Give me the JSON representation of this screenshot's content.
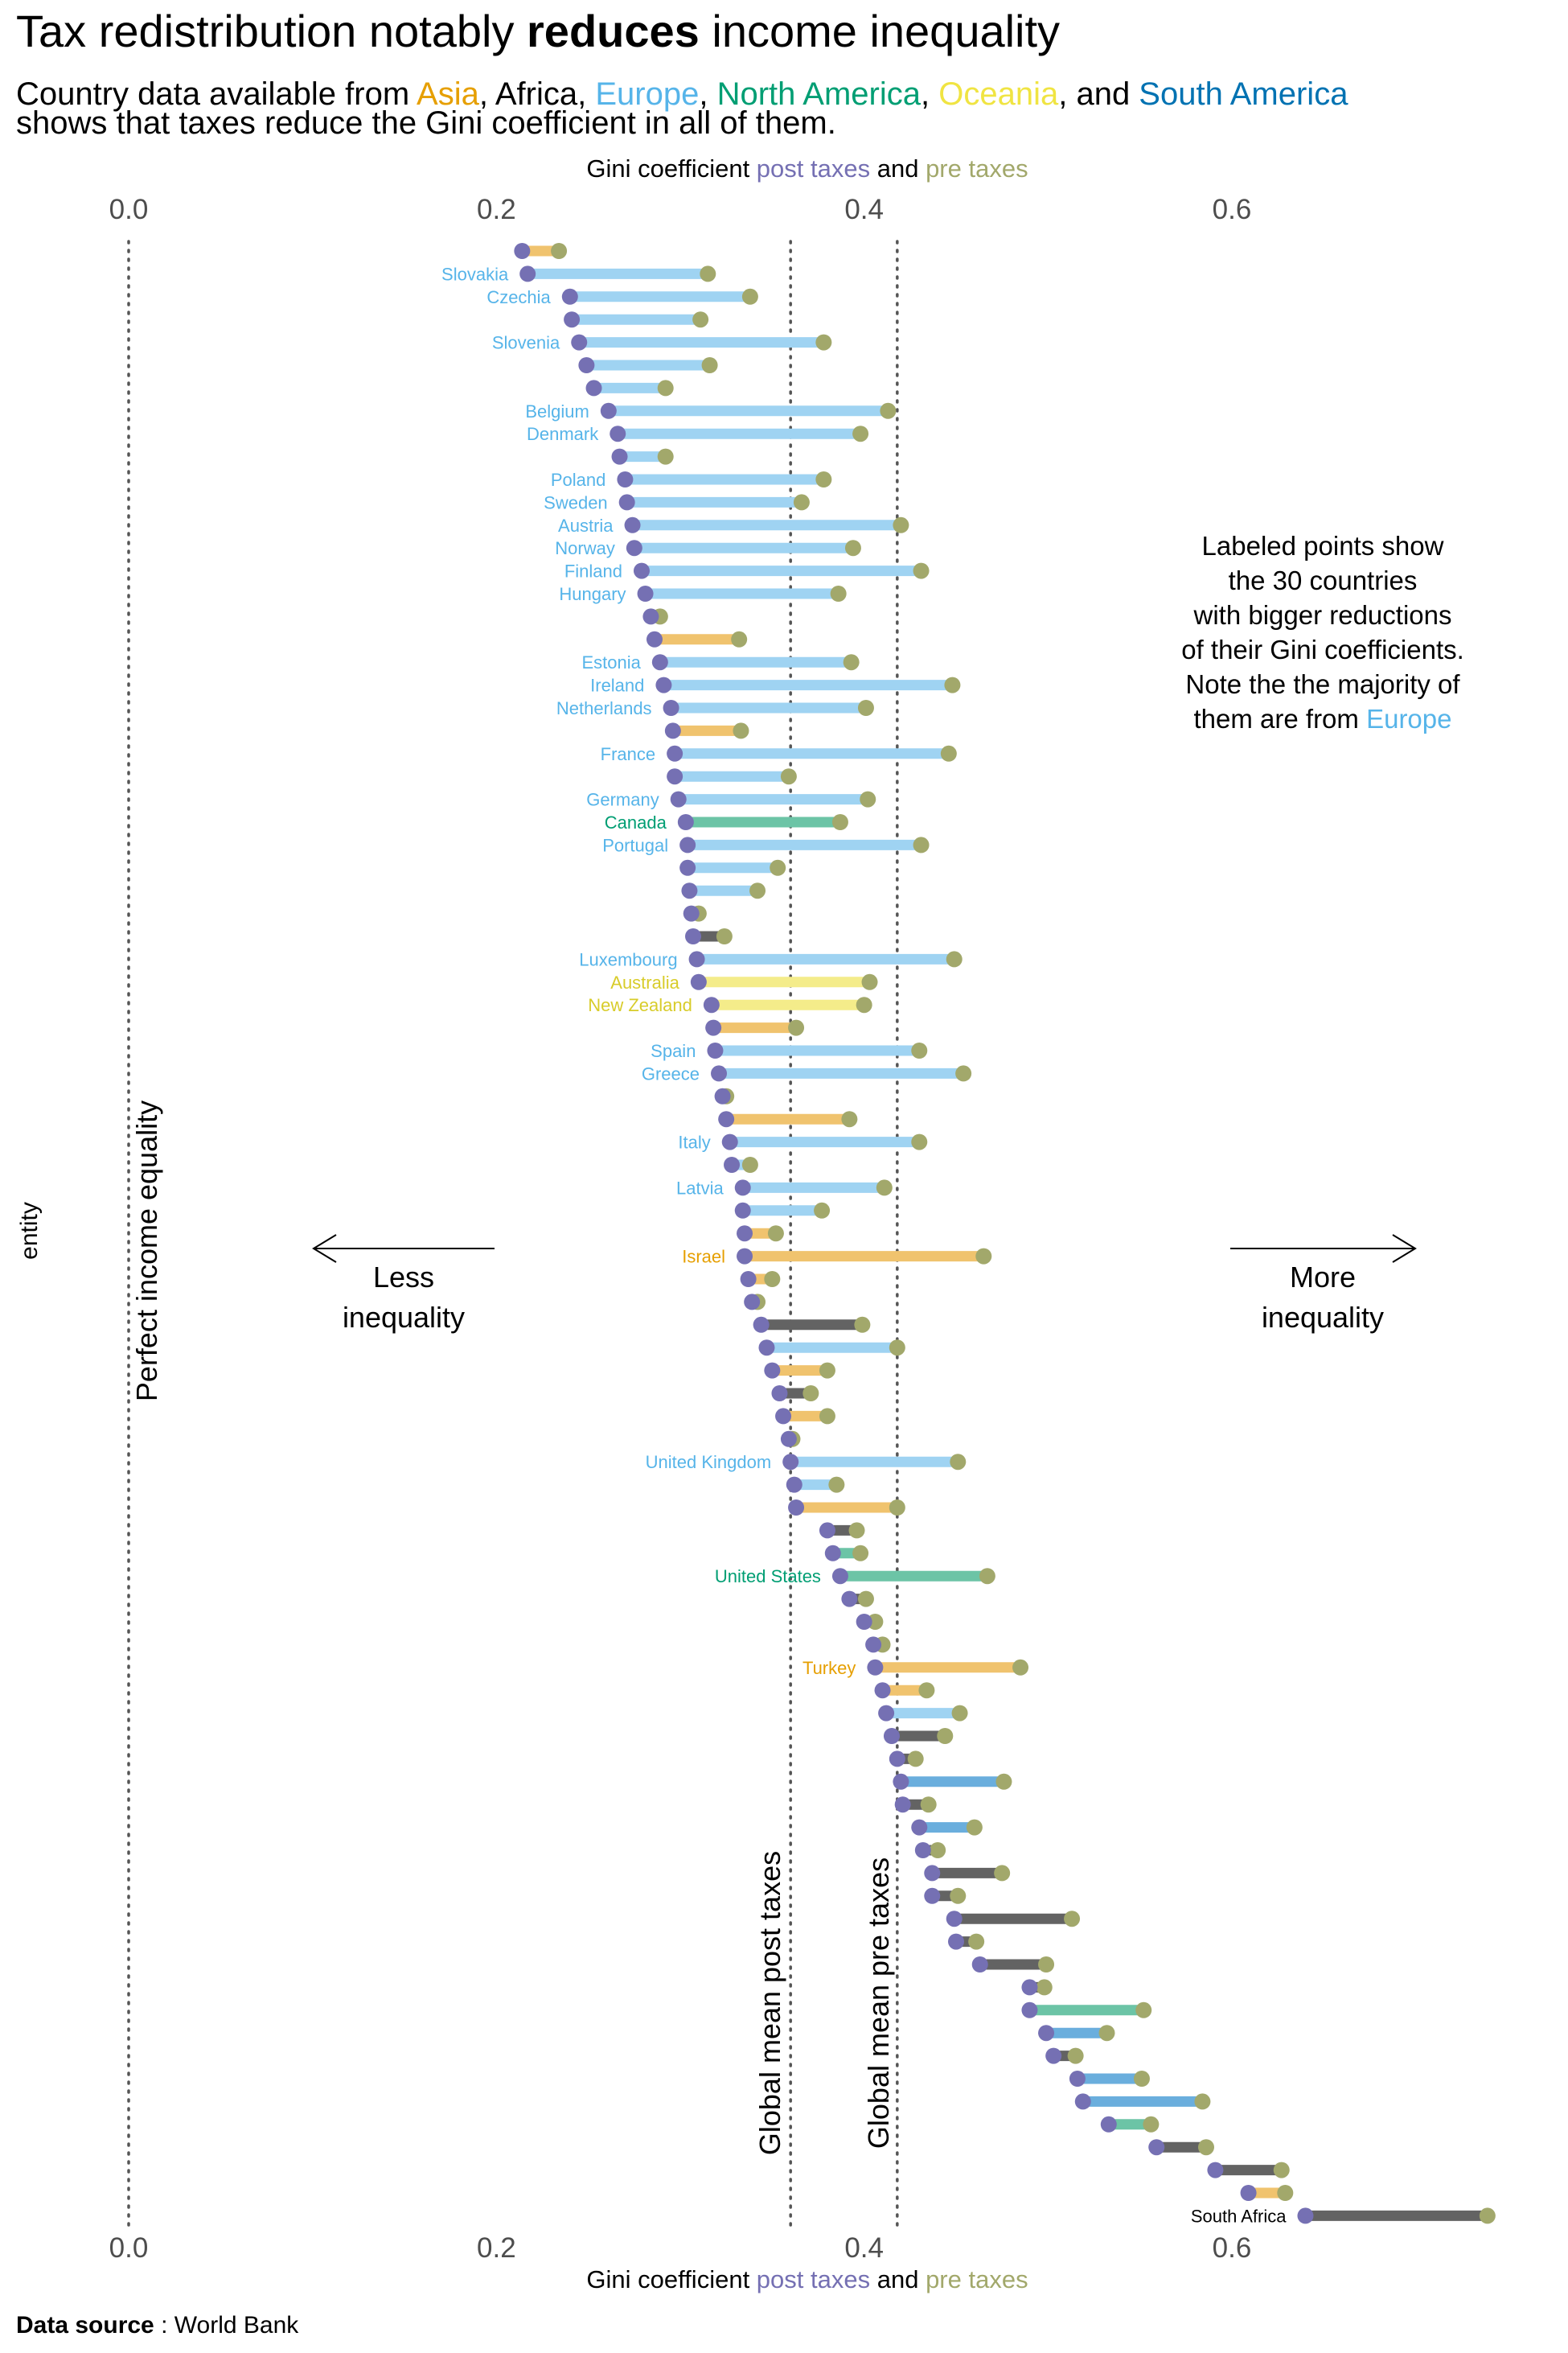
{
  "title_plain": "Tax redistribution notably ",
  "title_bold": "reduces",
  "title_rest": " income inequality",
  "subtitle": {
    "line1_parts": [
      {
        "t": "Country data available from ",
        "c": "#000000"
      },
      {
        "t": "Asia",
        "c": "#E69F00"
      },
      {
        "t": ", Africa, ",
        "c": "#000000"
      },
      {
        "t": "Europe",
        "c": "#56B4E9"
      },
      {
        "t": ", ",
        "c": "#000000"
      },
      {
        "t": "North America",
        "c": "#009E73"
      },
      {
        "t": ", ",
        "c": "#000000"
      },
      {
        "t": "Oceania",
        "c": "#F0E442"
      },
      {
        "t": ", and ",
        "c": "#000000"
      },
      {
        "t": "South America",
        "c": "#0072B2"
      }
    ],
    "line2": "shows that taxes reduce the Gini coefficient in all of them."
  },
  "axis_title_parts": [
    {
      "t": "Gini coefficient ",
      "c": "#000000"
    },
    {
      "t": "post taxes",
      "c": "#7570B3"
    },
    {
      "t": " and ",
      "c": "#000000"
    },
    {
      "t": "pre taxes",
      "c": "#A2A86B"
    }
  ],
  "y_axis_label": "entity",
  "reference_labels": {
    "perfect": "Perfect income equality",
    "mean_post": "Global mean post taxes",
    "mean_pre": "Global mean pre taxes"
  },
  "arrows": {
    "less": [
      "Less",
      "inequality"
    ],
    "more": [
      "More",
      "inequality"
    ]
  },
  "annotation": {
    "lines": [
      "Labeled points show",
      "the 30 countries",
      "with bigger reductions",
      "of their Gini coefficients.",
      "Note the the majority of"
    ],
    "last_line_prefix": "them are from ",
    "last_line_highlight": "Europe",
    "highlight_color": "#56B4E9"
  },
  "source_bold": "Data source",
  "source_rest": " : World Bank",
  "colors": {
    "post": "#7570B3",
    "pre": "#A2A86B",
    "Asia": "#F0C36E",
    "Europe": "#9FD3F2",
    "North America": "#6CC4A6",
    "Oceania": "#F4EC8A",
    "South America": "#6AAEDD",
    "Africa": "#636363"
  },
  "label_colors": {
    "Asia": "#E69F00",
    "Europe": "#56B4E9",
    "North America": "#009E73",
    "Oceania": "#D8CC2A",
    "South America": "#0072B2",
    "Africa": "#000000"
  },
  "chart_data": {
    "type": "dumbbell",
    "x_axis": "Gini coefficient",
    "xlim": [
      0.0,
      0.6
    ],
    "ticks": [
      0.0,
      0.2,
      0.4,
      0.6
    ],
    "tick_labels": [
      "0.0",
      "0.2",
      "0.4",
      "0.6"
    ],
    "global_mean_post": 0.36,
    "global_mean_pre": 0.418,
    "rows": [
      {
        "label": "",
        "region": "Asia",
        "post": 0.214,
        "pre": 0.234
      },
      {
        "label": "Slovakia",
        "region": "Europe",
        "post": 0.217,
        "pre": 0.315
      },
      {
        "label": "Czechia",
        "region": "Europe",
        "post": 0.24,
        "pre": 0.338
      },
      {
        "label": "",
        "region": "Europe",
        "post": 0.241,
        "pre": 0.311
      },
      {
        "label": "Slovenia",
        "region": "Europe",
        "post": 0.245,
        "pre": 0.378
      },
      {
        "label": "",
        "region": "Europe",
        "post": 0.249,
        "pre": 0.316
      },
      {
        "label": "",
        "region": "Europe",
        "post": 0.253,
        "pre": 0.292
      },
      {
        "label": "Belgium",
        "region": "Europe",
        "post": 0.261,
        "pre": 0.413
      },
      {
        "label": "Denmark",
        "region": "Europe",
        "post": 0.266,
        "pre": 0.398
      },
      {
        "label": "",
        "region": "Europe",
        "post": 0.267,
        "pre": 0.292
      },
      {
        "label": "Poland",
        "region": "Europe",
        "post": 0.27,
        "pre": 0.378
      },
      {
        "label": "Sweden",
        "region": "Europe",
        "post": 0.271,
        "pre": 0.366
      },
      {
        "label": "Austria",
        "region": "Europe",
        "post": 0.274,
        "pre": 0.42
      },
      {
        "label": "Norway",
        "region": "Europe",
        "post": 0.275,
        "pre": 0.394
      },
      {
        "label": "Finland",
        "region": "Europe",
        "post": 0.279,
        "pre": 0.431
      },
      {
        "label": "Hungary",
        "region": "Europe",
        "post": 0.281,
        "pre": 0.386
      },
      {
        "label": "",
        "region": "Europe",
        "post": 0.284,
        "pre": 0.289
      },
      {
        "label": "",
        "region": "Asia",
        "post": 0.286,
        "pre": 0.332
      },
      {
        "label": "Estonia",
        "region": "Europe",
        "post": 0.289,
        "pre": 0.393
      },
      {
        "label": "Ireland",
        "region": "Europe",
        "post": 0.291,
        "pre": 0.448
      },
      {
        "label": "Netherlands",
        "region": "Europe",
        "post": 0.295,
        "pre": 0.401
      },
      {
        "label": "",
        "region": "Asia",
        "post": 0.296,
        "pre": 0.333
      },
      {
        "label": "France",
        "region": "Europe",
        "post": 0.297,
        "pre": 0.446
      },
      {
        "label": "",
        "region": "Europe",
        "post": 0.297,
        "pre": 0.359
      },
      {
        "label": "Germany",
        "region": "Europe",
        "post": 0.299,
        "pre": 0.402
      },
      {
        "label": "Canada",
        "region": "North America",
        "post": 0.303,
        "pre": 0.387
      },
      {
        "label": "Portugal",
        "region": "Europe",
        "post": 0.304,
        "pre": 0.431
      },
      {
        "label": "",
        "region": "Europe",
        "post": 0.304,
        "pre": 0.353
      },
      {
        "label": "",
        "region": "Europe",
        "post": 0.305,
        "pre": 0.342
      },
      {
        "label": "",
        "region": "Europe",
        "post": 0.306,
        "pre": 0.31
      },
      {
        "label": "",
        "region": "Africa",
        "post": 0.307,
        "pre": 0.324
      },
      {
        "label": "Luxembourg",
        "region": "Europe",
        "post": 0.309,
        "pre": 0.449
      },
      {
        "label": "Australia",
        "region": "Oceania",
        "post": 0.31,
        "pre": 0.403
      },
      {
        "label": "New Zealand",
        "region": "Oceania",
        "post": 0.317,
        "pre": 0.4
      },
      {
        "label": "",
        "region": "Asia",
        "post": 0.318,
        "pre": 0.363
      },
      {
        "label": "Spain",
        "region": "Europe",
        "post": 0.319,
        "pre": 0.43
      },
      {
        "label": "Greece",
        "region": "Europe",
        "post": 0.321,
        "pre": 0.454
      },
      {
        "label": "",
        "region": "Europe",
        "post": 0.323,
        "pre": 0.325
      },
      {
        "label": "",
        "region": "Asia",
        "post": 0.325,
        "pre": 0.392
      },
      {
        "label": "Italy",
        "region": "Europe",
        "post": 0.327,
        "pre": 0.43
      },
      {
        "label": "",
        "region": "Europe",
        "post": 0.328,
        "pre": 0.338
      },
      {
        "label": "Latvia",
        "region": "Europe",
        "post": 0.334,
        "pre": 0.411
      },
      {
        "label": "",
        "region": "Europe",
        "post": 0.334,
        "pre": 0.377
      },
      {
        "label": "",
        "region": "Asia",
        "post": 0.335,
        "pre": 0.352
      },
      {
        "label": "Israel",
        "region": "Asia",
        "post": 0.335,
        "pre": 0.465
      },
      {
        "label": "",
        "region": "Asia",
        "post": 0.337,
        "pre": 0.35
      },
      {
        "label": "",
        "region": "Africa",
        "post": 0.339,
        "pre": 0.342
      },
      {
        "label": "",
        "region": "Africa",
        "post": 0.344,
        "pre": 0.399
      },
      {
        "label": "",
        "region": "Europe",
        "post": 0.347,
        "pre": 0.418
      },
      {
        "label": "",
        "region": "Asia",
        "post": 0.35,
        "pre": 0.38
      },
      {
        "label": "",
        "region": "Africa",
        "post": 0.354,
        "pre": 0.371
      },
      {
        "label": "",
        "region": "Asia",
        "post": 0.356,
        "pre": 0.38
      },
      {
        "label": "",
        "region": "Africa",
        "post": 0.359,
        "pre": 0.361
      },
      {
        "label": "United Kingdom",
        "region": "Europe",
        "post": 0.36,
        "pre": 0.451
      },
      {
        "label": "",
        "region": "Europe",
        "post": 0.362,
        "pre": 0.385
      },
      {
        "label": "",
        "region": "Asia",
        "post": 0.363,
        "pre": 0.418
      },
      {
        "label": "",
        "region": "Africa",
        "post": 0.38,
        "pre": 0.396
      },
      {
        "label": "",
        "region": "North America",
        "post": 0.383,
        "pre": 0.398
      },
      {
        "label": "United States",
        "region": "North America",
        "post": 0.387,
        "pre": 0.467
      },
      {
        "label": "",
        "region": "Africa",
        "post": 0.392,
        "pre": 0.401
      },
      {
        "label": "",
        "region": "Africa",
        "post": 0.4,
        "pre": 0.406
      },
      {
        "label": "",
        "region": "Africa",
        "post": 0.405,
        "pre": 0.41
      },
      {
        "label": "Turkey",
        "region": "Asia",
        "post": 0.406,
        "pre": 0.485
      },
      {
        "label": "",
        "region": "Asia",
        "post": 0.41,
        "pre": 0.434
      },
      {
        "label": "",
        "region": "Europe",
        "post": 0.412,
        "pre": 0.452
      },
      {
        "label": "",
        "region": "Africa",
        "post": 0.415,
        "pre": 0.444
      },
      {
        "label": "",
        "region": "Africa",
        "post": 0.418,
        "pre": 0.428
      },
      {
        "label": "",
        "region": "South America",
        "post": 0.42,
        "pre": 0.476
      },
      {
        "label": "",
        "region": "Africa",
        "post": 0.421,
        "pre": 0.435
      },
      {
        "label": "",
        "region": "South America",
        "post": 0.43,
        "pre": 0.46
      },
      {
        "label": "",
        "region": "Africa",
        "post": 0.432,
        "pre": 0.44
      },
      {
        "label": "",
        "region": "Africa",
        "post": 0.437,
        "pre": 0.475
      },
      {
        "label": "",
        "region": "Africa",
        "post": 0.437,
        "pre": 0.451
      },
      {
        "label": "",
        "region": "Africa",
        "post": 0.449,
        "pre": 0.513
      },
      {
        "label": "",
        "region": "Africa",
        "post": 0.45,
        "pre": 0.461
      },
      {
        "label": "",
        "region": "Africa",
        "post": 0.463,
        "pre": 0.499
      },
      {
        "label": "",
        "region": "Africa",
        "post": 0.49,
        "pre": 0.498
      },
      {
        "label": "",
        "region": "North America",
        "post": 0.49,
        "pre": 0.552
      },
      {
        "label": "",
        "region": "South America",
        "post": 0.499,
        "pre": 0.532
      },
      {
        "label": "",
        "region": "Africa",
        "post": 0.503,
        "pre": 0.515
      },
      {
        "label": "",
        "region": "South America",
        "post": 0.516,
        "pre": 0.551
      },
      {
        "label": "",
        "region": "South America",
        "post": 0.519,
        "pre": 0.584
      },
      {
        "label": "",
        "region": "North America",
        "post": 0.533,
        "pre": 0.556
      },
      {
        "label": "",
        "region": "Africa",
        "post": 0.559,
        "pre": 0.586
      },
      {
        "label": "",
        "region": "Africa",
        "post": 0.591,
        "pre": 0.627
      },
      {
        "label": "",
        "region": "Asia",
        "post": 0.609,
        "pre": 0.629
      },
      {
        "label": "South Africa",
        "region": "Africa",
        "post": 0.64,
        "pre": 0.739
      }
    ]
  }
}
